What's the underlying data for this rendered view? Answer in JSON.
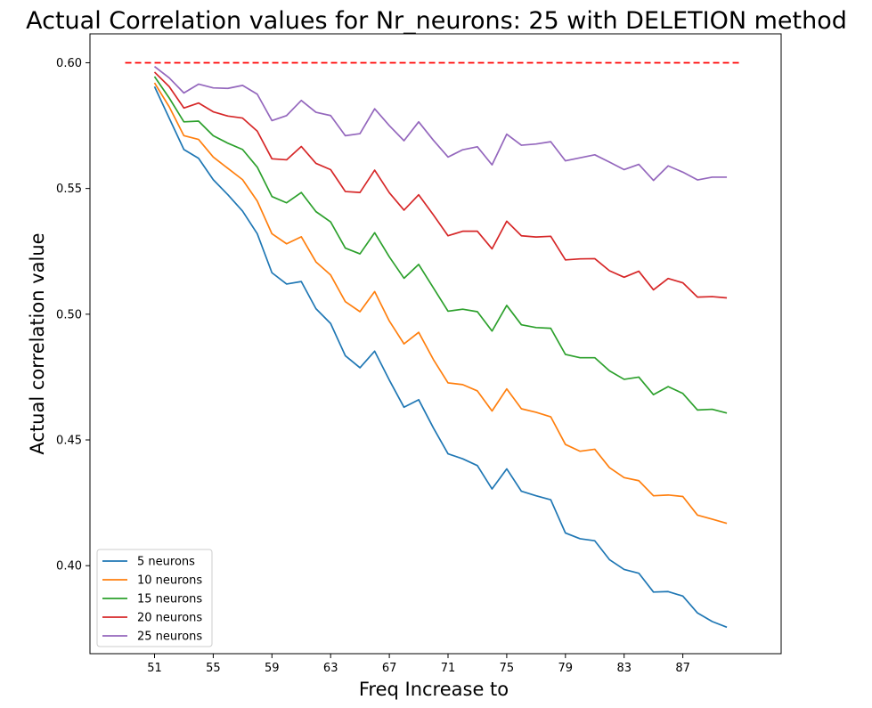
{
  "chart_data": {
    "type": "line",
    "title": "Actual Correlation values for Nr_neurons:  25 with DELETION method",
    "xlabel": "Freq Increase to",
    "ylabel": "Actual correlation value",
    "xlim": [
      46.6,
      93.7
    ],
    "ylim": [
      0.365,
      0.6115
    ],
    "xticks": [
      51,
      55,
      59,
      63,
      67,
      71,
      75,
      79,
      83,
      87
    ],
    "yticks": [
      0.4,
      0.45,
      0.5,
      0.55,
      0.6
    ],
    "ytick_labels": [
      "0.40",
      "0.45",
      "0.50",
      "0.55",
      "0.60"
    ],
    "x": [
      51,
      52,
      53,
      54,
      55,
      56,
      57,
      58,
      59,
      60,
      61,
      62,
      63,
      64,
      65,
      66,
      67,
      68,
      69,
      70,
      71,
      72,
      73,
      74,
      75,
      76,
      77,
      78,
      79,
      80,
      81,
      82,
      83,
      84,
      85,
      86,
      87,
      88,
      89,
      90
    ],
    "series": [
      {
        "name": "5 neurons",
        "color": "#1f77b4",
        "values": [
          0.5905,
          0.578,
          0.5655,
          0.562,
          0.5535,
          0.5475,
          0.541,
          0.532,
          0.5165,
          0.512,
          0.513,
          0.5022,
          0.4963,
          0.4835,
          0.4787,
          0.4853,
          0.4738,
          0.463,
          0.466,
          0.4548,
          0.4445,
          0.4425,
          0.4398,
          0.4305,
          0.4385,
          0.4296,
          0.4278,
          0.4262,
          0.413,
          0.4107,
          0.4099,
          0.4024,
          0.3985,
          0.397,
          0.3895,
          0.3897,
          0.3879,
          0.3812,
          0.3778,
          0.3755
        ]
      },
      {
        "name": "10 neurons",
        "color": "#ff7f0e",
        "values": [
          0.592,
          0.5825,
          0.571,
          0.5695,
          0.5625,
          0.558,
          0.5535,
          0.545,
          0.532,
          0.528,
          0.5308,
          0.5208,
          0.5156,
          0.505,
          0.501,
          0.509,
          0.4973,
          0.4882,
          0.4928,
          0.482,
          0.4727,
          0.472,
          0.4695,
          0.4615,
          0.4703,
          0.4624,
          0.461,
          0.4592,
          0.4482,
          0.4455,
          0.4463,
          0.439,
          0.435,
          0.4338,
          0.4278,
          0.4281,
          0.4275,
          0.4201,
          0.4185,
          0.4168
        ]
      },
      {
        "name": "15 neurons",
        "color": "#2ca02c",
        "values": [
          0.5945,
          0.586,
          0.5765,
          0.5768,
          0.571,
          0.568,
          0.5655,
          0.5585,
          0.5468,
          0.5443,
          0.5484,
          0.5408,
          0.5367,
          0.5263,
          0.524,
          0.5324,
          0.5228,
          0.5143,
          0.5198,
          0.5105,
          0.5012,
          0.502,
          0.501,
          0.4933,
          0.5035,
          0.4958,
          0.4947,
          0.4944,
          0.484,
          0.4827,
          0.4827,
          0.4775,
          0.4741,
          0.475,
          0.468,
          0.4712,
          0.4685,
          0.4619,
          0.4622,
          0.4607
        ]
      },
      {
        "name": "20 neurons",
        "color": "#d62728",
        "values": [
          0.5963,
          0.5905,
          0.582,
          0.584,
          0.5805,
          0.5788,
          0.578,
          0.5728,
          0.5618,
          0.5614,
          0.5667,
          0.56,
          0.5575,
          0.5488,
          0.5484,
          0.5573,
          0.5483,
          0.5414,
          0.5475,
          0.5395,
          0.5312,
          0.533,
          0.533,
          0.526,
          0.537,
          0.5312,
          0.5307,
          0.531,
          0.5216,
          0.522,
          0.5221,
          0.5173,
          0.5147,
          0.5171,
          0.5097,
          0.5142,
          0.5125,
          0.5068,
          0.507,
          0.5065
        ]
      },
      {
        "name": "25 neurons",
        "color": "#9467bd",
        "values": [
          0.5985,
          0.594,
          0.588,
          0.5915,
          0.59,
          0.5898,
          0.591,
          0.5875,
          0.577,
          0.579,
          0.585,
          0.5803,
          0.579,
          0.571,
          0.5718,
          0.5817,
          0.575,
          0.569,
          0.5765,
          0.5692,
          0.5625,
          0.5654,
          0.5666,
          0.5594,
          0.5716,
          0.5672,
          0.5677,
          0.5686,
          0.561,
          0.5622,
          0.5634,
          0.5605,
          0.5575,
          0.5596,
          0.5532,
          0.559,
          0.5565,
          0.5534,
          0.5545,
          0.5545
        ]
      }
    ],
    "reference_line": {
      "value": 0.6,
      "x_range": [
        49,
        91
      ],
      "color": "#ff0000",
      "style": "dashed"
    },
    "legend": {
      "placement": "lower-left"
    },
    "grid": false
  }
}
